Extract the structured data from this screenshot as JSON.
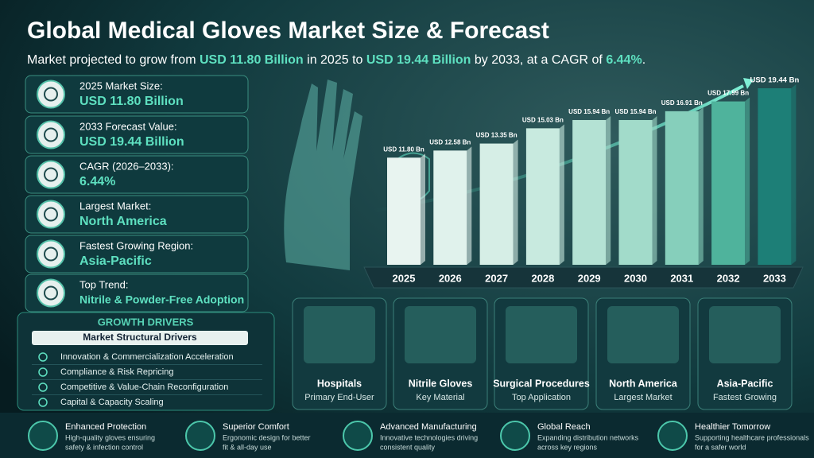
{
  "header": {
    "title": "Global Medical Gloves Market Size & Forecast",
    "subtitle": [
      {
        "text": "Market projected to grow from ",
        "highlight": false
      },
      {
        "text": "USD 11.80 Billion",
        "highlight": true
      },
      {
        "text": " in 2025 to ",
        "highlight": false
      },
      {
        "text": "USD 19.44 Billion",
        "highlight": true
      },
      {
        "text": " by 2033, at a CAGR of ",
        "highlight": false
      },
      {
        "text": "6.44%",
        "highlight": true
      },
      {
        "text": ".",
        "highlight": false
      }
    ]
  },
  "stats": [
    {
      "label": "2025 Market Size:",
      "value": "USD 11.80 Billion"
    },
    {
      "label": "2033 Forecast Value:",
      "value": "USD 19.44 Billion"
    },
    {
      "label": "CAGR (2026–2033):",
      "value": "6.44%"
    },
    {
      "label": "Largest Market:",
      "value": "North America"
    },
    {
      "label": "Fastest Growing Region:",
      "value": "Asia-Pacific"
    },
    {
      "label": "Top Trend:",
      "value": "Nitrile & Powder-Free Adoption"
    }
  ],
  "chart_data": {
    "type": "bar",
    "categories": [
      "2025",
      "2026",
      "2027",
      "2028",
      "2029",
      "2030",
      "2031",
      "2032",
      "2033"
    ],
    "values": [
      11.8,
      12.58,
      13.35,
      15.03,
      15.94,
      15.94,
      16.91,
      17.99,
      19.44
    ],
    "value_labels": [
      "USD 11.80 Bn",
      "USD 12.58 Bn",
      "USD 13.35 Bn",
      "USD 15.03 Bn",
      "USD 15.94 Bn",
      "USD 15.94 Bn",
      "USD 16.91 Bn",
      "USD 17.99 Bn",
      "USD 19.44 Bn"
    ],
    "colors": [
      "#e8f4f0",
      "#e0f2ec",
      "#d6eee6",
      "#c8eadf",
      "#b4e2d4",
      "#a2dbca",
      "#86cfbb",
      "#4fb39c",
      "#1d7f77"
    ]
  },
  "drivers": {
    "title": "GROWTH DRIVERS",
    "subtitle": "Market Structural Drivers",
    "items": [
      "Innovation & Commercialization Acceleration",
      "Compliance & Risk Repricing",
      "Competitive & Value-Chain Reconfiguration",
      "Capital & Capacity Scaling"
    ]
  },
  "cards": [
    {
      "title": "Hospitals",
      "subtitle": "Primary End-User"
    },
    {
      "title": "Nitrile Gloves",
      "subtitle": "Key Material"
    },
    {
      "title": "Surgical Procedures",
      "subtitle": "Top Application"
    },
    {
      "title": "North America",
      "subtitle": "Largest Market"
    },
    {
      "title": "Asia-Pacific",
      "subtitle": "Fastest Growing"
    }
  ],
  "footer": [
    {
      "title": "Enhanced Protection",
      "lines": [
        "High-quality gloves ensuring",
        "safety & infection control"
      ]
    },
    {
      "title": "Superior Comfort",
      "lines": [
        "Ergonomic design for better",
        "fit & all-day use"
      ]
    },
    {
      "title": "Advanced Manufacturing",
      "lines": [
        "Innovative technologies driving",
        "consistent quality"
      ]
    },
    {
      "title": "Global Reach",
      "lines": [
        "Expanding distribution networks",
        "across key regions"
      ]
    },
    {
      "title": "Healthier Tomorrow",
      "lines": [
        "Supporting healthcare professionals",
        "for a safer world"
      ]
    }
  ]
}
